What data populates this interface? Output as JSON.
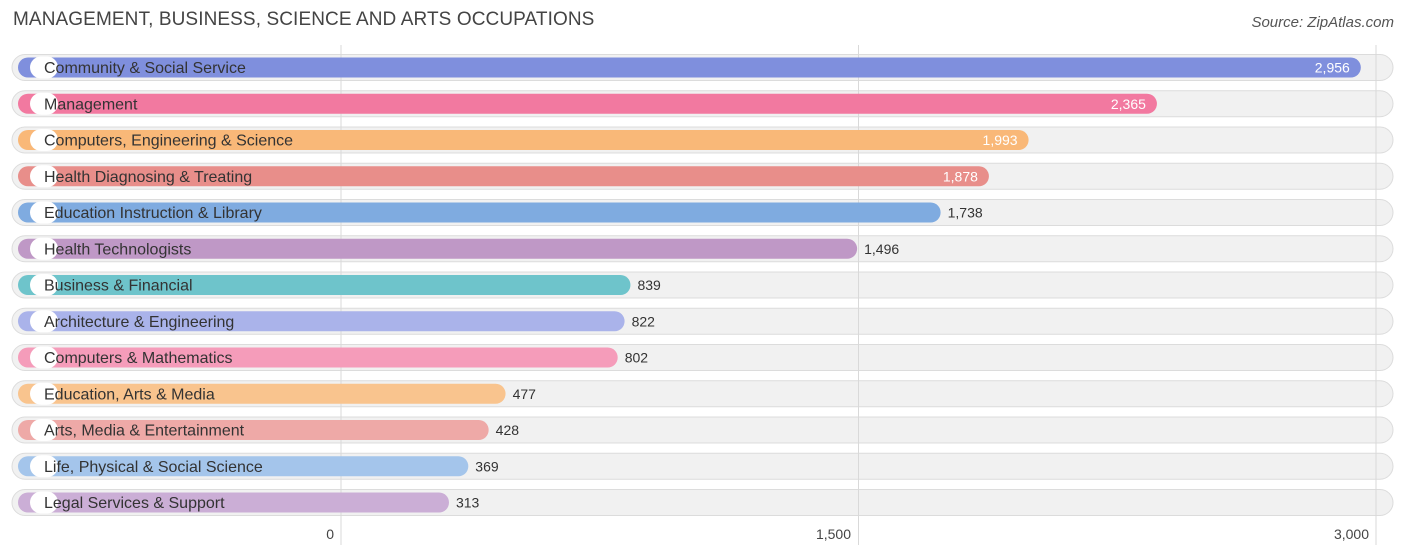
{
  "header": {
    "title": "MANAGEMENT, BUSINESS, SCIENCE AND ARTS OCCUPATIONS",
    "source": "Source: ZipAtlas.com"
  },
  "chart_data": {
    "type": "bar",
    "orientation": "horizontal",
    "title": "MANAGEMENT, BUSINESS, SCIENCE AND ARTS OCCUPATIONS",
    "xlim": [
      0,
      3000
    ],
    "ticks": [
      {
        "value": 0,
        "label": "0"
      },
      {
        "value": 1500,
        "label": "1,500"
      },
      {
        "value": 3000,
        "label": "3,000"
      }
    ],
    "grid": true,
    "categories": [
      "Community & Social Service",
      "Management",
      "Computers, Engineering & Science",
      "Health Diagnosing & Treating",
      "Education Instruction & Library",
      "Health Technologists",
      "Business & Financial",
      "Architecture & Engineering",
      "Computers & Mathematics",
      "Education, Arts & Media",
      "Arts, Media & Entertainment",
      "Life, Physical & Social Science",
      "Legal Services & Support"
    ],
    "values": [
      2956,
      2365,
      1993,
      1878,
      1738,
      1496,
      839,
      822,
      802,
      477,
      428,
      369,
      313
    ],
    "value_labels": [
      "2,956",
      "2,365",
      "1,993",
      "1,878",
      "1,738",
      "1,496",
      "839",
      "822",
      "802",
      "477",
      "428",
      "369",
      "313"
    ],
    "colors": [
      "#7f8fdd",
      "#f279a0",
      "#f9b878",
      "#e88e8a",
      "#7fabe0",
      "#bf98c6",
      "#6ec4cb",
      "#aab3ea",
      "#f59cba",
      "#f9c48e",
      "#eea9a7",
      "#a4c5eb",
      "#cbaed6"
    ]
  }
}
